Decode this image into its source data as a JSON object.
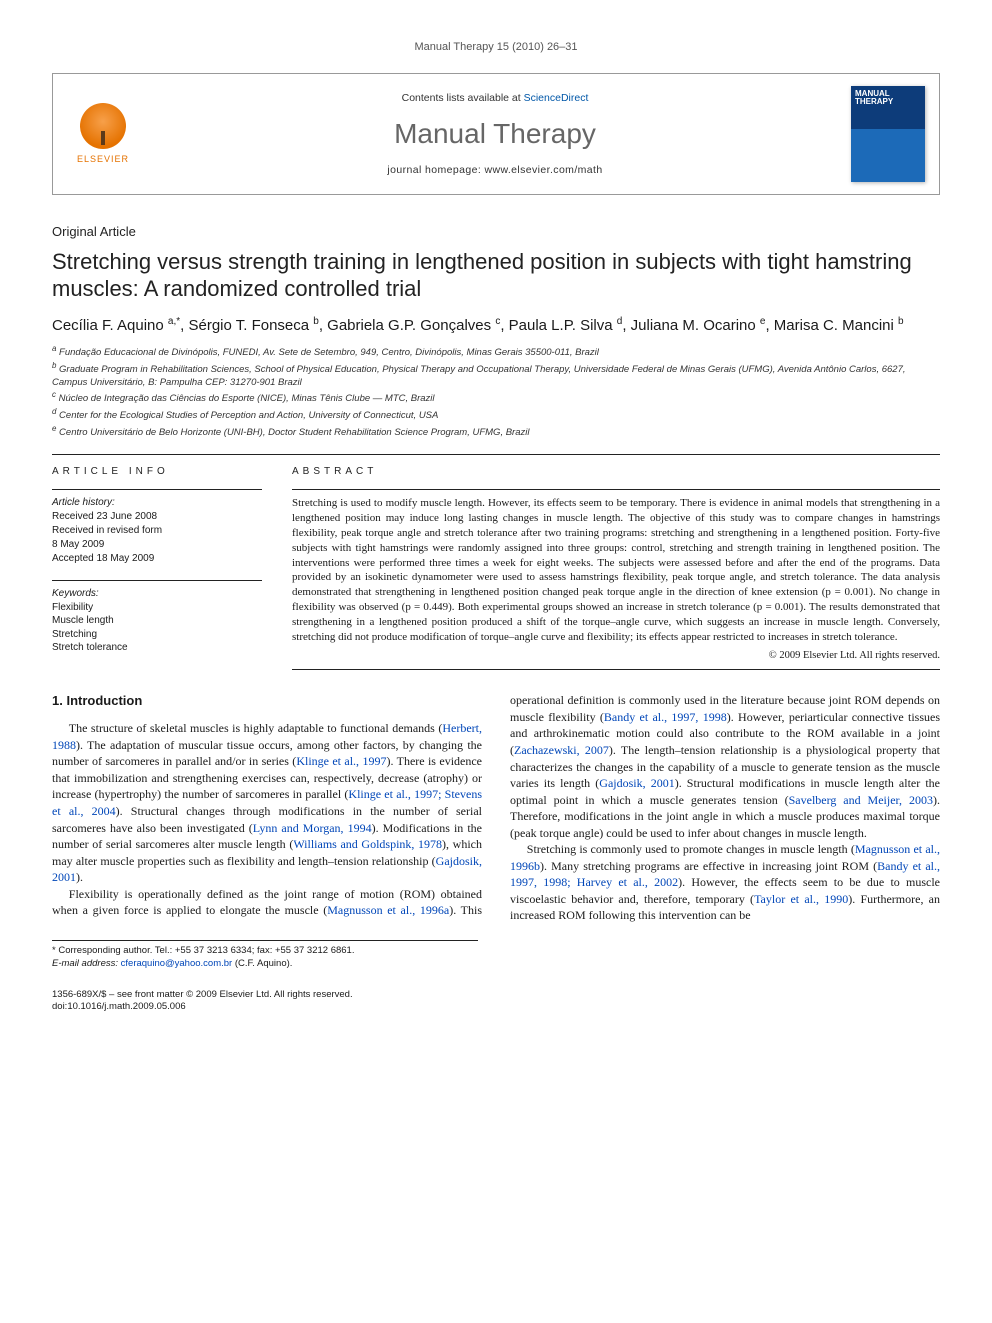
{
  "running_header": "Manual Therapy 15 (2010) 26–31",
  "banner": {
    "contents_text": "Contents lists available at ",
    "sciencedirect": "ScienceDirect",
    "journal_name": "Manual Therapy",
    "homepage": "journal homepage: www.elsevier.com/math",
    "cover_label": "MANUAL THERAPY",
    "elsevier": "ELSEVIER"
  },
  "article_type": "Original Article",
  "title": "Stretching versus strength training in lengthened position in subjects with tight hamstring muscles: A randomized controlled trial",
  "authors_html": "Cecília F. Aquino <sup>a,*</sup>, Sérgio T. Fonseca <sup>b</sup>, Gabriela G.P. Gonçalves <sup>c</sup>, Paula L.P. Silva <sup>d</sup>, Juliana M. Ocarino <sup>e</sup>, Marisa C. Mancini <sup>b</sup>",
  "affiliations": [
    "a Fundação Educacional de Divinópolis, FUNEDI, Av. Sete de Setembro, 949, Centro, Divinópolis, Minas Gerais 35500-011, Brazil",
    "b Graduate Program in Rehabilitation Sciences, School of Physical Education, Physical Therapy and Occupational Therapy, Universidade Federal de Minas Gerais (UFMG), Avenida Antônio Carlos, 6627, Campus Universitário, B: Pampulha CEP: 31270-901 Brazil",
    "c Núcleo de Integração das Ciências do Esporte (NICE), Minas Tênis Clube — MTC, Brazil",
    "d Center for the Ecological Studies of Perception and Action, University of Connecticut, USA",
    "e Centro Universitário de Belo Horizonte (UNI-BH), Doctor Student Rehabilitation Science Program, UFMG, Brazil"
  ],
  "article_info_head": "ARTICLE INFO",
  "abstract_head": "ABSTRACT",
  "history": {
    "label": "Article history:",
    "received": "Received 23 June 2008",
    "revised": "Received in revised form",
    "revised_date": "8 May 2009",
    "accepted": "Accepted 18 May 2009"
  },
  "keywords": {
    "label": "Keywords:",
    "items": [
      "Flexibility",
      "Muscle length",
      "Stretching",
      "Stretch tolerance"
    ]
  },
  "abstract_text": "Stretching is used to modify muscle length. However, its effects seem to be temporary. There is evidence in animal models that strengthening in a lengthened position may induce long lasting changes in muscle length. The objective of this study was to compare changes in hamstrings flexibility, peak torque angle and stretch tolerance after two training programs: stretching and strengthening in a lengthened position. Forty-five subjects with tight hamstrings were randomly assigned into three groups: control, stretching and strength training in lengthened position. The interventions were performed three times a week for eight weeks. The subjects were assessed before and after the end of the programs. Data provided by an isokinetic dynamometer were used to assess hamstrings flexibility, peak torque angle, and stretch tolerance. The data analysis demonstrated that strengthening in lengthened position changed peak torque angle in the direction of knee extension (p = 0.001). No change in flexibility was observed (p = 0.449). Both experimental groups showed an increase in stretch tolerance (p = 0.001). The results demonstrated that strengthening in a lengthened position produced a shift of the torque–angle curve, which suggests an increase in muscle length. Conversely, stretching did not produce modification of torque–angle curve and flexibility; its effects appear restricted to increases in stretch tolerance.",
  "copyright": "© 2009 Elsevier Ltd. All rights reserved.",
  "section_heading": "1. Introduction",
  "body": {
    "p1a": "The structure of skeletal muscles is highly adaptable to functional demands (",
    "c1": "Herbert, 1988",
    "p1b": "). The adaptation of muscular tissue occurs, among other factors, by changing the number of sarcomeres in parallel and/or in series (",
    "c2": "Klinge et al., 1997",
    "p1c": "). There is evidence that immobilization and strengthening exercises can, respectively, decrease (atrophy) or increase (hypertrophy) the number of sarcomeres in parallel (",
    "c3": "Klinge et al., 1997; Stevens et al., 2004",
    "p1d": "). Structural changes through modifications in the number of serial sarcomeres have also been investigated (",
    "c4": "Lynn and Morgan, 1994",
    "p1e": "). Modifications in the number of serial sarcomeres alter muscle length (",
    "c5": "Williams and Goldspink, 1978",
    "p1f": "), which may alter muscle properties such as flexibility and length–tension relationship (",
    "c6": "Gajdosik, 2001",
    "p1g": ").",
    "p2a": "Flexibility is operationally defined as the joint range of motion (ROM) obtained when a given force is applied to elongate the ",
    "p2b": "muscle (",
    "c7": "Magnusson et al., 1996a",
    "p2c": "). This operational definition is commonly used in the literature because joint ROM depends on muscle flexibility (",
    "c8": "Bandy et al., 1997, 1998",
    "p2d": "). However, periarticular connective tissues and arthrokinematic motion could also contribute to the ROM available in a joint (",
    "c9": "Zachazewski, 2007",
    "p2e": "). The length–tension relationship is a physiological property that characterizes the changes in the capability of a muscle to generate tension as the muscle varies its length (",
    "c10": "Gajdosik, 2001",
    "p2f": "). Structural modifications in muscle length alter the optimal point in which a muscle generates tension (",
    "c11": "Savelberg and Meijer, 2003",
    "p2g": "). Therefore, modifications in the joint angle in which a muscle produces maximal torque (peak torque angle) could be used to infer about changes in muscle length.",
    "p3a": "Stretching is commonly used to promote changes in muscle length (",
    "c12": "Magnusson et al., 1996b",
    "p3b": "). Many stretching programs are effective in increasing joint ROM (",
    "c13": "Bandy et al., 1997, 1998; Harvey et al., 2002",
    "p3c": "). However, the effects seem to be due to muscle viscoelastic behavior and, therefore, temporary (",
    "c14": "Taylor et al., 1990",
    "p3d": "). Furthermore, an increased ROM following this intervention can be"
  },
  "footnote": {
    "corr": "* Corresponding author. Tel.: +55 37 3213 6334; fax: +55 37 3212 6861.",
    "email_label": "E-mail address:",
    "email": "cferaquino@yahoo.com.br",
    "email_who": "(C.F. Aquino)."
  },
  "bottom": {
    "issn": "1356-689X/$ – see front matter © 2009 Elsevier Ltd. All rights reserved.",
    "doi": "doi:10.1016/j.math.2009.05.006"
  },
  "colors": {
    "link": "#0046b8",
    "accent": "#e57200",
    "text": "#1a1a1a",
    "rule": "#222222",
    "bg": "#ffffff"
  }
}
